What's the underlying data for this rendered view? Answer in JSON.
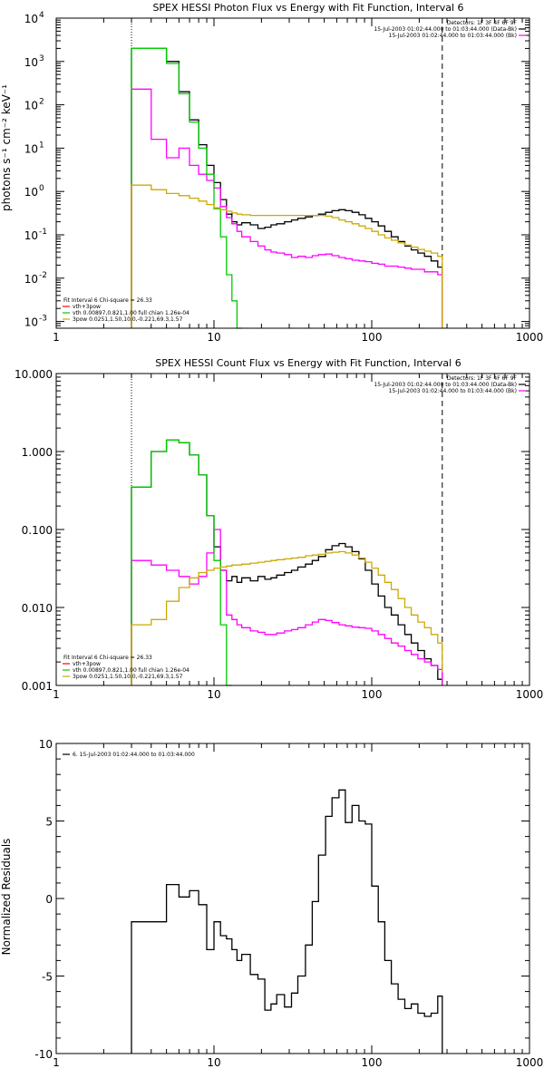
{
  "chart_data": [
    {
      "type": "line",
      "title": "SPEX HESSI Photon Flux vs Energy with Fit Function, Interval 6",
      "ylabel": "photons s⁻¹ cm⁻² keV⁻¹",
      "xlabel": "",
      "xscale": "log",
      "yscale": "log",
      "xlim": [
        1,
        1000
      ],
      "ylim": [
        0.0007,
        10000
      ],
      "xticks": [
        "1",
        "10",
        "100",
        "1000"
      ],
      "yticks": [
        {
          "value": 0.001,
          "base": "10",
          "exp": "-3"
        },
        {
          "value": 0.01,
          "base": "10",
          "exp": "-2"
        },
        {
          "value": 0.1,
          "base": "10",
          "exp": "-1"
        },
        {
          "value": 1,
          "base": "10",
          "exp": "0"
        },
        {
          "value": 10,
          "base": "10",
          "exp": "1"
        },
        {
          "value": 100,
          "base": "10",
          "exp": "2"
        },
        {
          "value": 1000,
          "base": "10",
          "exp": "3"
        },
        {
          "value": 10000,
          "base": "10",
          "exp": "4"
        }
      ],
      "header_lines": [
        "Detectors: 1F 3F 4F 6F 9F",
        "15-Jul-2003 01:02:44.000 to 01:03:44.000 (Data-Bk)",
        "15-Jul-2003 01:02:44.000 to 01:03:44.000 (Bk)"
      ],
      "header_colors": [
        "",
        "#000000",
        "#ff00ff"
      ],
      "legend_lines": [
        "Fit Interval  6    Chi-square = 26.33",
        "vth+3pow",
        "vth 0.00897,0.821,1.00  full chian 1.26e-04",
        "3pow 0.0251,1.50,10.0,-0.221,69.3,1.57"
      ],
      "legend_colors": [
        "",
        "#ff0000",
        "#00cc00",
        "#ccaa00"
      ],
      "vlines": [
        {
          "x": 3,
          "style": "dotted"
        },
        {
          "x": 280,
          "style": "dashed"
        }
      ],
      "series": [
        {
          "color": "#000000",
          "x": [
            3,
            4,
            5,
            6,
            7,
            8,
            9,
            10,
            11,
            12,
            13,
            14,
            15,
            17,
            19,
            21,
            23,
            25,
            28,
            31,
            34,
            38,
            42,
            46,
            51,
            56,
            62,
            68,
            75,
            83,
            91,
            100,
            110,
            121,
            133,
            147,
            162,
            178,
            196,
            216,
            238,
            262,
            280
          ],
          "y": [
            2000,
            2000,
            1000,
            200,
            45,
            12,
            4,
            1.6,
            0.65,
            0.3,
            0.2,
            0.17,
            0.19,
            0.17,
            0.14,
            0.15,
            0.17,
            0.18,
            0.2,
            0.22,
            0.24,
            0.26,
            0.28,
            0.3,
            0.33,
            0.36,
            0.38,
            0.36,
            0.33,
            0.29,
            0.24,
            0.2,
            0.16,
            0.12,
            0.09,
            0.07,
            0.055,
            0.045,
            0.038,
            0.032,
            0.025,
            0.018,
            0.0007
          ]
        },
        {
          "color": "#ff00ff",
          "x": [
            3,
            4,
            5,
            6,
            7,
            8,
            9,
            10,
            11,
            12,
            13,
            14,
            15,
            17,
            19,
            21,
            23,
            25,
            28,
            31,
            34,
            38,
            42,
            46,
            51,
            56,
            62,
            68,
            75,
            83,
            91,
            100,
            110,
            121,
            133,
            147,
            162,
            178,
            196,
            216,
            238,
            262,
            280
          ],
          "y": [
            230,
            16,
            6,
            10,
            4,
            2.5,
            1.8,
            1.2,
            0.45,
            0.25,
            0.18,
            0.12,
            0.09,
            0.07,
            0.055,
            0.045,
            0.04,
            0.038,
            0.035,
            0.03,
            0.032,
            0.03,
            0.033,
            0.035,
            0.036,
            0.033,
            0.03,
            0.028,
            0.026,
            0.025,
            0.024,
            0.022,
            0.021,
            0.019,
            0.019,
            0.018,
            0.017,
            0.016,
            0.016,
            0.014,
            0.014,
            0.012,
            0.0007
          ]
        },
        {
          "color": "#00cc00",
          "x": [
            3,
            4,
            5,
            6,
            7,
            8,
            9,
            10,
            11,
            12,
            13,
            14,
            15,
            17,
            19,
            21,
            23,
            25,
            28,
            31,
            34,
            38,
            42,
            46,
            51,
            56,
            62,
            68,
            75,
            83,
            91,
            100,
            110,
            121,
            133,
            147,
            162,
            178,
            196,
            216,
            238,
            262,
            280
          ],
          "y": [
            2000,
            2000,
            900,
            180,
            40,
            10,
            2.5,
            0.4,
            0.09,
            0.012,
            0.003,
            0.0007,
            null,
            null,
            null,
            null,
            null,
            null,
            null,
            null,
            null,
            null,
            null,
            null,
            null,
            null,
            null,
            null,
            null,
            null,
            null,
            null,
            null,
            null,
            null,
            null,
            null,
            null,
            null,
            null,
            null,
            null,
            null
          ]
        },
        {
          "color": "#ccaa00",
          "x": [
            3,
            4,
            5,
            6,
            7,
            8,
            9,
            10,
            11,
            12,
            13,
            14,
            15,
            17,
            19,
            21,
            23,
            25,
            28,
            31,
            34,
            38,
            42,
            46,
            51,
            56,
            62,
            68,
            75,
            83,
            91,
            100,
            110,
            121,
            133,
            147,
            162,
            178,
            196,
            216,
            238,
            262,
            280
          ],
          "y": [
            1.4,
            1.1,
            0.9,
            0.8,
            0.7,
            0.6,
            0.5,
            0.42,
            0.38,
            0.35,
            0.32,
            0.3,
            0.29,
            0.28,
            0.28,
            0.28,
            0.28,
            0.28,
            0.28,
            0.28,
            0.28,
            0.28,
            0.28,
            0.28,
            0.27,
            0.25,
            0.22,
            0.2,
            0.18,
            0.16,
            0.14,
            0.12,
            0.1,
            0.085,
            0.075,
            0.065,
            0.058,
            0.052,
            0.046,
            0.042,
            0.038,
            0.032,
            0.0007
          ]
        }
      ]
    },
    {
      "type": "line",
      "title": "SPEX HESSI Count Flux vs Energy with Fit Function, Interval 6",
      "ylabel": "",
      "xlabel": "",
      "xscale": "log",
      "yscale": "log",
      "xlim": [
        1,
        1000
      ],
      "ylim": [
        0.001,
        10
      ],
      "xticks": [
        "1",
        "10",
        "100",
        "1000"
      ],
      "yticks": [
        {
          "value": 0.001,
          "label": "0.001"
        },
        {
          "value": 0.01,
          "label": "0.010"
        },
        {
          "value": 0.1,
          "label": "0.100"
        },
        {
          "value": 1,
          "label": "1.000"
        },
        {
          "value": 10,
          "label": "10.000"
        }
      ],
      "header_lines": [
        "Detectors: 1F 3F 4F 6F 9F",
        "15-Jul-2003 01:02:44.000 to 01:03:44.000 (Data-Bk)",
        "15-Jul-2003 01:02:44.000 to 01:03:44.000 (Bk)"
      ],
      "header_colors": [
        "",
        "#000000",
        "#ff00ff"
      ],
      "legend_lines": [
        "Fit Interval  6    Chi-square = 26.33",
        "vth+3pow",
        "vth 0.00897,0.821,1.00  full chian 1.26e-04",
        "3pow 0.0251,1.50,10.0,-0.221,69.3,1.57"
      ],
      "legend_colors": [
        "",
        "#ff0000",
        "#00cc00",
        "#ccaa00"
      ],
      "vlines": [
        {
          "x": 3,
          "style": "dotted"
        },
        {
          "x": 280,
          "style": "dashed"
        }
      ],
      "series": [
        {
          "color": "#000000",
          "x": [
            3,
            4,
            5,
            6,
            7,
            8,
            9,
            10,
            11,
            12,
            13,
            14,
            15,
            17,
            19,
            21,
            23,
            25,
            28,
            31,
            34,
            38,
            42,
            46,
            51,
            56,
            62,
            68,
            75,
            83,
            91,
            100,
            110,
            121,
            133,
            147,
            162,
            178,
            196,
            216,
            238,
            262,
            280
          ],
          "y": [
            0.35,
            1.0,
            1.4,
            1.3,
            0.9,
            0.5,
            0.15,
            0.06,
            0.03,
            0.022,
            0.025,
            0.021,
            0.024,
            0.022,
            0.025,
            0.023,
            0.024,
            0.026,
            0.028,
            0.03,
            0.033,
            0.036,
            0.04,
            0.045,
            0.055,
            0.062,
            0.066,
            0.06,
            0.052,
            0.042,
            0.03,
            0.02,
            0.014,
            0.01,
            0.008,
            0.006,
            0.0045,
            0.0035,
            0.0028,
            0.0022,
            0.0018,
            0.0012,
            0.001
          ]
        },
        {
          "color": "#ff00ff",
          "x": [
            3,
            4,
            5,
            6,
            7,
            8,
            9,
            10,
            11,
            12,
            13,
            14,
            15,
            17,
            19,
            21,
            23,
            25,
            28,
            31,
            34,
            38,
            42,
            46,
            51,
            56,
            62,
            68,
            75,
            83,
            91,
            100,
            110,
            121,
            133,
            147,
            162,
            178,
            196,
            216,
            238,
            262,
            280
          ],
          "y": [
            0.04,
            0.035,
            0.03,
            0.025,
            0.02,
            0.025,
            0.05,
            0.1,
            0.03,
            0.008,
            0.007,
            0.006,
            0.0055,
            0.005,
            0.0048,
            0.0045,
            0.0045,
            0.0047,
            0.005,
            0.0052,
            0.0055,
            0.006,
            0.0065,
            0.007,
            0.0068,
            0.0064,
            0.006,
            0.0058,
            0.0056,
            0.0055,
            0.0054,
            0.005,
            0.0045,
            0.004,
            0.0035,
            0.0032,
            0.0028,
            0.0025,
            0.0022,
            0.002,
            0.0018,
            0.0016,
            0.001
          ]
        },
        {
          "color": "#00cc00",
          "x": [
            3,
            4,
            5,
            6,
            7,
            8,
            9,
            10,
            11,
            12,
            13,
            14,
            15,
            17,
            19,
            21,
            23,
            25,
            28,
            31,
            34,
            38,
            42,
            46,
            51,
            56,
            62,
            68,
            75,
            83,
            91,
            100,
            110,
            121,
            133,
            147,
            162,
            178,
            196,
            216,
            238,
            262,
            280
          ],
          "y": [
            0.35,
            1.0,
            1.4,
            1.3,
            0.9,
            0.5,
            0.15,
            0.04,
            0.006,
            0.001,
            null,
            null,
            null,
            null,
            null,
            null,
            null,
            null,
            null,
            null,
            null,
            null,
            null,
            null,
            null,
            null,
            null,
            null,
            null,
            null,
            null,
            null,
            null,
            null,
            null,
            null,
            null,
            null,
            null,
            null,
            null,
            null,
            null
          ]
        },
        {
          "color": "#ccaa00",
          "x": [
            3,
            4,
            5,
            6,
            7,
            8,
            9,
            10,
            11,
            12,
            13,
            14,
            15,
            17,
            19,
            21,
            23,
            25,
            28,
            31,
            34,
            38,
            42,
            46,
            51,
            56,
            62,
            68,
            75,
            83,
            91,
            100,
            110,
            121,
            133,
            147,
            162,
            178,
            196,
            216,
            238,
            262,
            280
          ],
          "y": [
            0.006,
            0.007,
            0.012,
            0.018,
            0.024,
            0.028,
            0.03,
            0.032,
            0.033,
            0.034,
            0.035,
            0.035,
            0.036,
            0.037,
            0.038,
            0.039,
            0.04,
            0.041,
            0.042,
            0.043,
            0.044,
            0.046,
            0.047,
            0.048,
            0.05,
            0.051,
            0.052,
            0.05,
            0.047,
            0.043,
            0.038,
            0.032,
            0.026,
            0.021,
            0.017,
            0.013,
            0.01,
            0.008,
            0.0065,
            0.0055,
            0.0045,
            0.0035,
            0.0015
          ]
        }
      ]
    },
    {
      "type": "line",
      "title": "",
      "ylabel": "Normalized Residuals",
      "xlabel": "",
      "xscale": "log",
      "yscale": "linear",
      "xlim": [
        1,
        1000
      ],
      "ylim": [
        -10,
        10
      ],
      "xticks": [
        "1",
        "10",
        "100",
        "1000"
      ],
      "yticks": [
        {
          "value": -10,
          "label": "-10"
        },
        {
          "value": -5,
          "label": "-5"
        },
        {
          "value": 0,
          "label": "0"
        },
        {
          "value": 5,
          "label": "5"
        },
        {
          "value": 10,
          "label": "10"
        }
      ],
      "legend_lines": [
        "6. 15-Jul-2003 01:02:44.000 to 01:03:44.000"
      ],
      "legend_colors": [
        "#000000"
      ],
      "series": [
        {
          "color": "#000000",
          "x": [
            3,
            4,
            5,
            6,
            7,
            8,
            9,
            10,
            11,
            12,
            13,
            14,
            15,
            17,
            19,
            21,
            23,
            25,
            28,
            31,
            34,
            38,
            42,
            46,
            51,
            56,
            62,
            68,
            75,
            83,
            91,
            100,
            110,
            121,
            133,
            147,
            162,
            178,
            196,
            216,
            238,
            262,
            280
          ],
          "y": [
            -1.5,
            -1.5,
            0.9,
            0.1,
            0.5,
            -0.4,
            -3.3,
            -1.5,
            -2.4,
            -2.6,
            -3.3,
            -4.0,
            -3.6,
            -4.9,
            -5.2,
            -7.2,
            -6.8,
            -6.2,
            -7.0,
            -6.1,
            -5.0,
            -3.0,
            -0.2,
            2.8,
            5.3,
            6.5,
            7.0,
            4.9,
            6.0,
            5.0,
            4.8,
            0.8,
            -1.5,
            -4.0,
            -5.5,
            -6.5,
            -7.1,
            -6.8,
            -7.4,
            -7.6,
            -7.4,
            -6.3,
            -10
          ]
        }
      ]
    }
  ]
}
